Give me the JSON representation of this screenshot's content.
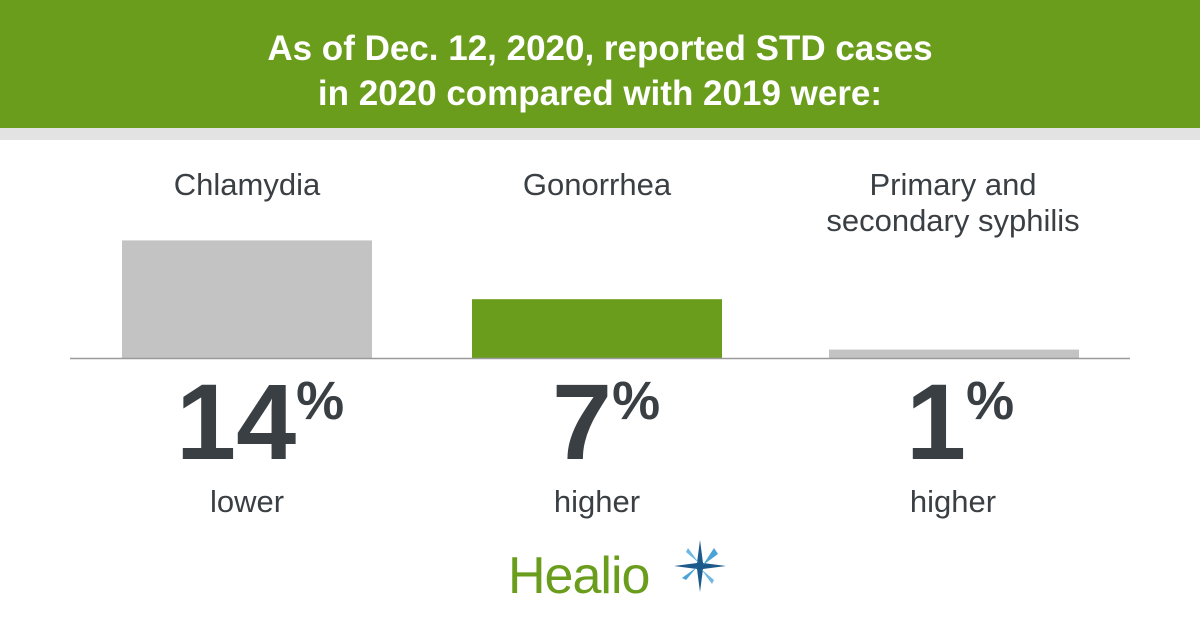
{
  "header": {
    "line1": "As of Dec. 12, 2020, reported STD cases",
    "line2": "in 2020 compared with 2019 were:"
  },
  "colors": {
    "brand_green": "#6a9d1c",
    "bar_gray": "#c3c3c3",
    "text_dark": "#3a3f44"
  },
  "chart_data": {
    "type": "bar",
    "title": "As of Dec. 12, 2020, reported STD cases in 2020 compared with 2019 were:",
    "categories": [
      "Chlamydia",
      "Gonorrhea",
      "Primary and secondary syphilis"
    ],
    "values": [
      -14,
      7,
      1
    ],
    "unit": "%",
    "display_values": [
      "14",
      "7",
      "1"
    ],
    "directions": [
      "lower",
      "higher",
      "higher"
    ],
    "bar_colors": [
      "#c3c3c3",
      "#6a9d1c",
      "#c3c3c3"
    ],
    "xlabel": "",
    "ylabel": ""
  },
  "logo": {
    "text": "Healio",
    "icon": "compass-star-icon"
  }
}
